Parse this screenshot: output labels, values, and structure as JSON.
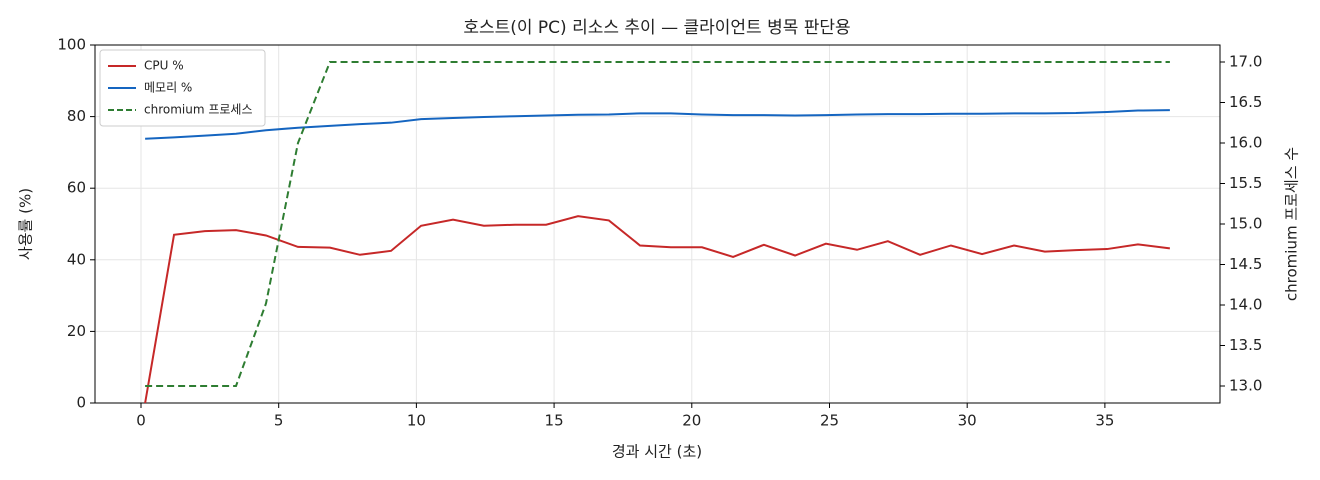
{
  "chart_data": {
    "type": "line",
    "title": "호스트(이 PC) 리소스 추이 — 클라이언트 병목 판단용",
    "x_label": "경과 시간 (초)",
    "y_label": "사용률 (%)",
    "y2_label": "chromium 프로세스 수",
    "x": [
      0.15,
      1.2,
      2.32,
      3.45,
      4.54,
      5.7,
      6.86,
      7.95,
      9.08,
      10.17,
      11.33,
      12.45,
      13.58,
      14.71,
      15.87,
      16.99,
      18.12,
      19.24,
      20.37,
      21.5,
      22.62,
      23.75,
      24.87,
      26.0,
      27.12,
      28.29,
      29.41,
      30.54,
      31.7,
      32.82,
      33.95,
      35.08,
      36.2,
      37.36
    ],
    "series": [
      {
        "name": "CPU %",
        "color": "#c62828",
        "style": "solid",
        "values": [
          0,
          47,
          48,
          48.3,
          46.8,
          43.6,
          43.4,
          41.4,
          42.5,
          49.5,
          51.2,
          49.5,
          49.8,
          49.8,
          52.2,
          51,
          44,
          43.5,
          43.5,
          40.8,
          44.2,
          41.2,
          44.5,
          42.8,
          45.2,
          41.4,
          44,
          41.6,
          44,
          42.3,
          42.7,
          43,
          44.3,
          43.2
        ]
      },
      {
        "name": "메모리 %",
        "color": "#1565c0",
        "style": "solid",
        "values": [
          73.8,
          74.2,
          74.7,
          75.2,
          76.2,
          76.9,
          77.4,
          77.9,
          78.3,
          79.3,
          79.6,
          79.9,
          80.1,
          80.3,
          80.5,
          80.6,
          80.9,
          80.9,
          80.6,
          80.4,
          80.4,
          80.3,
          80.4,
          80.6,
          80.7,
          80.7,
          80.8,
          80.8,
          80.9,
          80.9,
          81.0,
          81.3,
          81.7,
          81.8
        ]
      },
      {
        "name": "chromium 프로세스",
        "color": "#2e7d32",
        "style": "dashed",
        "axis": "y2",
        "values": [
          13,
          13,
          13,
          13,
          14.02,
          16,
          17,
          17,
          17,
          17,
          17,
          17,
          17,
          17,
          17,
          17,
          17,
          17,
          17,
          17,
          17,
          17,
          17,
          17,
          17,
          17,
          17,
          17,
          17,
          17,
          17,
          17,
          17,
          17
        ]
      }
    ],
    "xlim": [
      -1.67,
      39.18
    ],
    "xticks": [
      0,
      5,
      10,
      15,
      20,
      25,
      30,
      35
    ],
    "ylim": [
      0,
      100
    ],
    "yticks": [
      0,
      20,
      40,
      60,
      80,
      100
    ],
    "y2lim": [
      12.79,
      17.21
    ],
    "y2ticks": [
      {
        "value": 13,
        "label": "13.0"
      },
      {
        "value": 13.5,
        "label": "13.5"
      },
      {
        "value": 14,
        "label": "14.0"
      },
      {
        "value": 14.5,
        "label": "14.5"
      },
      {
        "value": 15,
        "label": "15.0"
      },
      {
        "value": 15.5,
        "label": "15.5"
      },
      {
        "value": 16,
        "label": "16.0"
      },
      {
        "value": 16.5,
        "label": "16.5"
      },
      {
        "value": 17,
        "label": "17.0"
      }
    ],
    "grid": true,
    "legend": "upper-left"
  }
}
